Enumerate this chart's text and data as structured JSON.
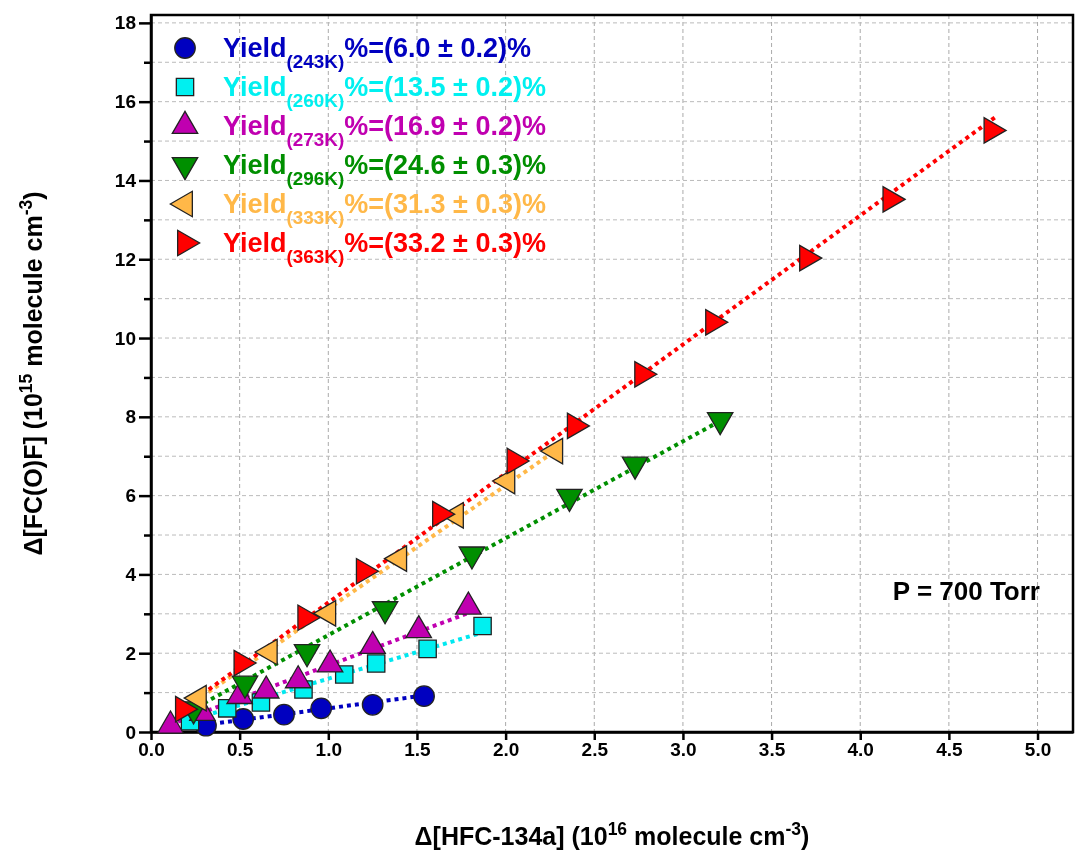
{
  "chart_data": {
    "type": "scatter",
    "xlabel": "Δ[HFC-134a] (10$^{16}$ molecule cm$^{-3}$)",
    "ylabel": "Δ[FC(O)F] (10$^{15}$ molecule cm$^{-3}$)",
    "xlim": [
      0,
      5.2
    ],
    "ylim": [
      0,
      18.2
    ],
    "xticks": [
      {
        "value": 0,
        "label": "0.0"
      },
      {
        "value": 0.5,
        "label": "0.5"
      },
      {
        "value": 1,
        "label": "1.0"
      },
      {
        "value": 1.5,
        "label": "1.5"
      },
      {
        "value": 2,
        "label": "2.0"
      },
      {
        "value": 2.5,
        "label": "2.5"
      },
      {
        "value": 3,
        "label": "3.0"
      },
      {
        "value": 3.5,
        "label": "3.5"
      },
      {
        "value": 4,
        "label": "4.0"
      },
      {
        "value": 4.5,
        "label": "4.5"
      },
      {
        "value": 5,
        "label": "5.0"
      }
    ],
    "yticks": [
      0,
      {
        "value": 1,
        "label": null
      },
      2,
      {
        "value": 3,
        "label": null
      },
      4,
      {
        "value": 5,
        "label": null
      },
      6,
      {
        "value": 7,
        "label": null
      },
      8,
      {
        "value": 9,
        "label": null
      },
      10,
      {
        "value": 11,
        "label": null
      },
      12,
      {
        "value": 13,
        "label": null
      },
      14,
      {
        "value": 15,
        "label": null
      },
      16,
      {
        "value": 17,
        "label": null
      },
      18
    ],
    "grid": true,
    "legend": "top left",
    "annotations": [
      "P = 700 Torr"
    ],
    "series": [
      {
        "type": "line",
        "color": "#0000c0",
        "line_style": "dotted",
        "x": [
          0.3,
          1.53
        ],
        "values": [
          0.18,
          0.92
        ]
      },
      {
        "type": "line",
        "color": "#00e8f0",
        "line_style": "dotted",
        "x": [
          0.22,
          1.85
        ],
        "values": [
          0.3,
          2.5
        ]
      },
      {
        "type": "line",
        "color": "#c000b0",
        "line_style": "dotted",
        "x": [
          0.11,
          1.79
        ],
        "values": [
          0.19,
          3.02
        ]
      },
      {
        "type": "line",
        "color": "#008f00",
        "line_style": "dotted",
        "x": [
          0.22,
          3.22
        ],
        "values": [
          0.54,
          7.92
        ]
      },
      {
        "type": "line",
        "color": "#ffb848",
        "line_style": "dotted",
        "x": [
          0.25,
          2.3
        ],
        "values": [
          0.78,
          7.2
        ]
      },
      {
        "type": "line",
        "color": "#ff0000",
        "line_style": "dotted",
        "x": [
          0.18,
          4.76
        ],
        "values": [
          0.6,
          15.6
        ]
      },
      {
        "name": "Yield$_{(243K)}$%=(6.0 ± 0.2)%",
        "color": "#0000c0",
        "marker": "circle",
        "x": [
          0.31,
          0.52,
          0.75,
          0.96,
          1.25,
          1.54
        ],
        "values": [
          0.16,
          0.33,
          0.44,
          0.6,
          0.69,
          0.91
        ]
      },
      {
        "name": "Yield$_{(260K)}$%=(13.5 ± 0.2)%",
        "color": "#00f0f0",
        "marker": "square",
        "x": [
          0.22,
          0.43,
          0.62,
          0.86,
          1.09,
          1.27,
          1.56,
          1.87
        ],
        "values": [
          0.27,
          0.6,
          0.75,
          1.08,
          1.46,
          1.74,
          2.11,
          2.69
        ]
      },
      {
        "name": "Yield$_{(273K)}$%=(16.9 ± 0.2)%",
        "color": "#c000b0",
        "marker": "triangle",
        "x": [
          0.11,
          0.29,
          0.5,
          0.65,
          0.83,
          1.01,
          1.25,
          1.51,
          1.79
        ],
        "values": [
          0.16,
          0.48,
          0.91,
          1.05,
          1.31,
          1.71,
          2.18,
          2.58,
          3.18
        ]
      },
      {
        "name": "Yield$_{(296K)}$%=(24.6 ± 0.3)%",
        "color": "#008f00",
        "marker": "triangle-down",
        "x": [
          0.24,
          0.53,
          0.88,
          1.32,
          1.81,
          2.36,
          2.73,
          3.21
        ],
        "values": [
          0.58,
          1.23,
          2.03,
          3.12,
          4.51,
          5.97,
          6.79,
          7.92
        ]
      },
      {
        "name": "Yield$_{(333K)}$%=(31.3 ± 0.3)%",
        "color": "#ffb848",
        "marker": "triangle-left",
        "x": [
          0.27,
          0.67,
          1.0,
          1.4,
          1.72,
          2.01,
          2.28
        ],
        "values": [
          0.86,
          2.03,
          3.01,
          4.4,
          5.5,
          6.37,
          7.13
        ]
      },
      {
        "name": "Yield$_{(363K)}$%=(33.2 ± 0.3)%",
        "color": "#ff0000",
        "marker": "triangle-right",
        "x": [
          0.18,
          0.51,
          0.87,
          1.2,
          1.63,
          2.05,
          2.39,
          2.77,
          3.17,
          3.7,
          4.17,
          4.74
        ],
        "values": [
          0.58,
          1.75,
          2.9,
          4.08,
          5.53,
          6.88,
          7.77,
          9.08,
          10.4,
          12.03,
          13.52,
          15.27
        ]
      }
    ]
  }
}
